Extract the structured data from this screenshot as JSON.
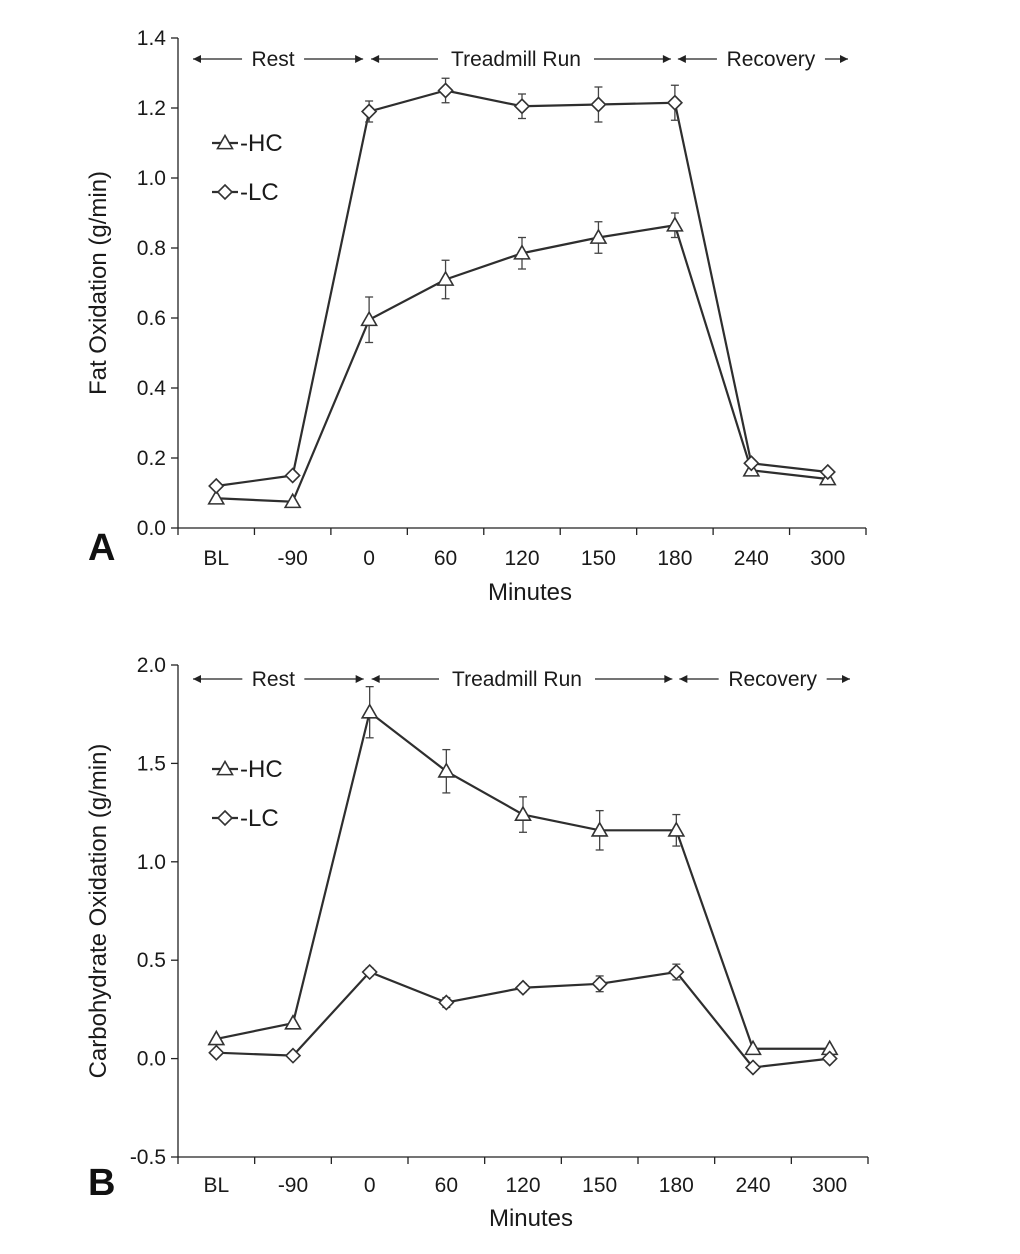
{
  "chart_data": [
    {
      "type": "line",
      "panel_label": "A",
      "ylabel": "Fat Oxidation (g/min)",
      "xlabel": "Minutes",
      "categories": [
        "BL",
        "-90",
        "0",
        "60",
        "120",
        "150",
        "180",
        "240",
        "300"
      ],
      "ylim": [
        0.0,
        1.4
      ],
      "yticks": [
        "0.0",
        "0.2",
        "0.4",
        "0.6",
        "0.8",
        "1.0",
        "1.2",
        "1.4"
      ],
      "phases": [
        "Rest",
        "Treadmill Run",
        "Recovery"
      ],
      "legend": [
        "HC",
        "LC"
      ],
      "series": [
        {
          "name": "HC",
          "marker": "triangle",
          "values": [
            0.085,
            0.075,
            0.595,
            0.71,
            0.785,
            0.83,
            0.865,
            0.165,
            0.14
          ],
          "errors": [
            0.0,
            0.0,
            0.065,
            0.055,
            0.045,
            0.045,
            0.035,
            0.0,
            0.0
          ]
        },
        {
          "name": "LC",
          "marker": "diamond",
          "values": [
            0.12,
            0.15,
            1.19,
            1.25,
            1.205,
            1.21,
            1.215,
            0.185,
            0.16
          ],
          "errors": [
            0.0,
            0.0,
            0.03,
            0.035,
            0.035,
            0.05,
            0.05,
            0.0,
            0.0
          ]
        }
      ]
    },
    {
      "type": "line",
      "panel_label": "B",
      "ylabel": "Carbohydrate Oxidation (g/min)",
      "xlabel": "Minutes",
      "categories": [
        "BL",
        "-90",
        "0",
        "60",
        "120",
        "150",
        "180",
        "240",
        "300"
      ],
      "ylim": [
        -0.5,
        2.0
      ],
      "yticks": [
        "-0.5",
        "0.0",
        "0.5",
        "1.0",
        "1.5",
        "2.0"
      ],
      "phases": [
        "Rest",
        "Treadmill Run",
        "Recovery"
      ],
      "legend": [
        "HC",
        "LC"
      ],
      "series": [
        {
          "name": "HC",
          "marker": "triangle",
          "values": [
            0.1,
            0.18,
            1.76,
            1.46,
            1.24,
            1.16,
            1.16,
            0.05,
            0.05
          ],
          "errors": [
            0.0,
            0.0,
            0.13,
            0.11,
            0.09,
            0.1,
            0.08,
            0.0,
            0.0
          ]
        },
        {
          "name": "LC",
          "marker": "diamond",
          "values": [
            0.03,
            0.015,
            0.44,
            0.285,
            0.36,
            0.38,
            0.44,
            -0.045,
            0.0
          ],
          "errors": [
            0.0,
            0.0,
            0.02,
            0.025,
            0.02,
            0.04,
            0.04,
            0.0,
            0.0
          ]
        }
      ]
    }
  ]
}
